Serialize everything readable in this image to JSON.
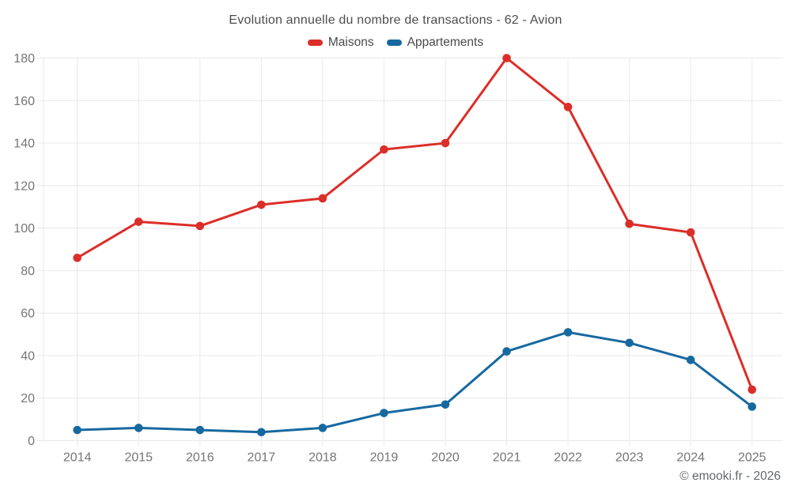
{
  "title": "Evolution annuelle du nombre de transactions - 62 - Avion",
  "footer": "© emooki.fr - 2026",
  "colors": {
    "maisons": "#dc2e28",
    "appartements": "#17699f",
    "grid": "#e8e8e8",
    "tick_text": "#757575",
    "title_text": "#4d4d4d",
    "legend_text": "#4a4a4a",
    "footer_text": "#65686c",
    "background": "#ffffff"
  },
  "chart_data": {
    "type": "line",
    "title": "Evolution annuelle du nombre de transactions - 62 - Avion",
    "x": [
      2014,
      2015,
      2016,
      2017,
      2018,
      2019,
      2020,
      2021,
      2022,
      2023,
      2024,
      2025
    ],
    "series": [
      {
        "name": "Maisons",
        "color": "#dc2e28",
        "values": [
          86,
          103,
          101,
          111,
          114,
          137,
          140,
          180,
          157,
          102,
          98,
          24
        ]
      },
      {
        "name": "Appartements",
        "color": "#17699f",
        "values": [
          5,
          6,
          5,
          4,
          6,
          13,
          17,
          42,
          51,
          46,
          38,
          16
        ]
      }
    ],
    "xlabel": "",
    "ylabel": "",
    "ylim": [
      0,
      180
    ],
    "ytick_step": 20,
    "grid": true,
    "legend_position": "top"
  }
}
